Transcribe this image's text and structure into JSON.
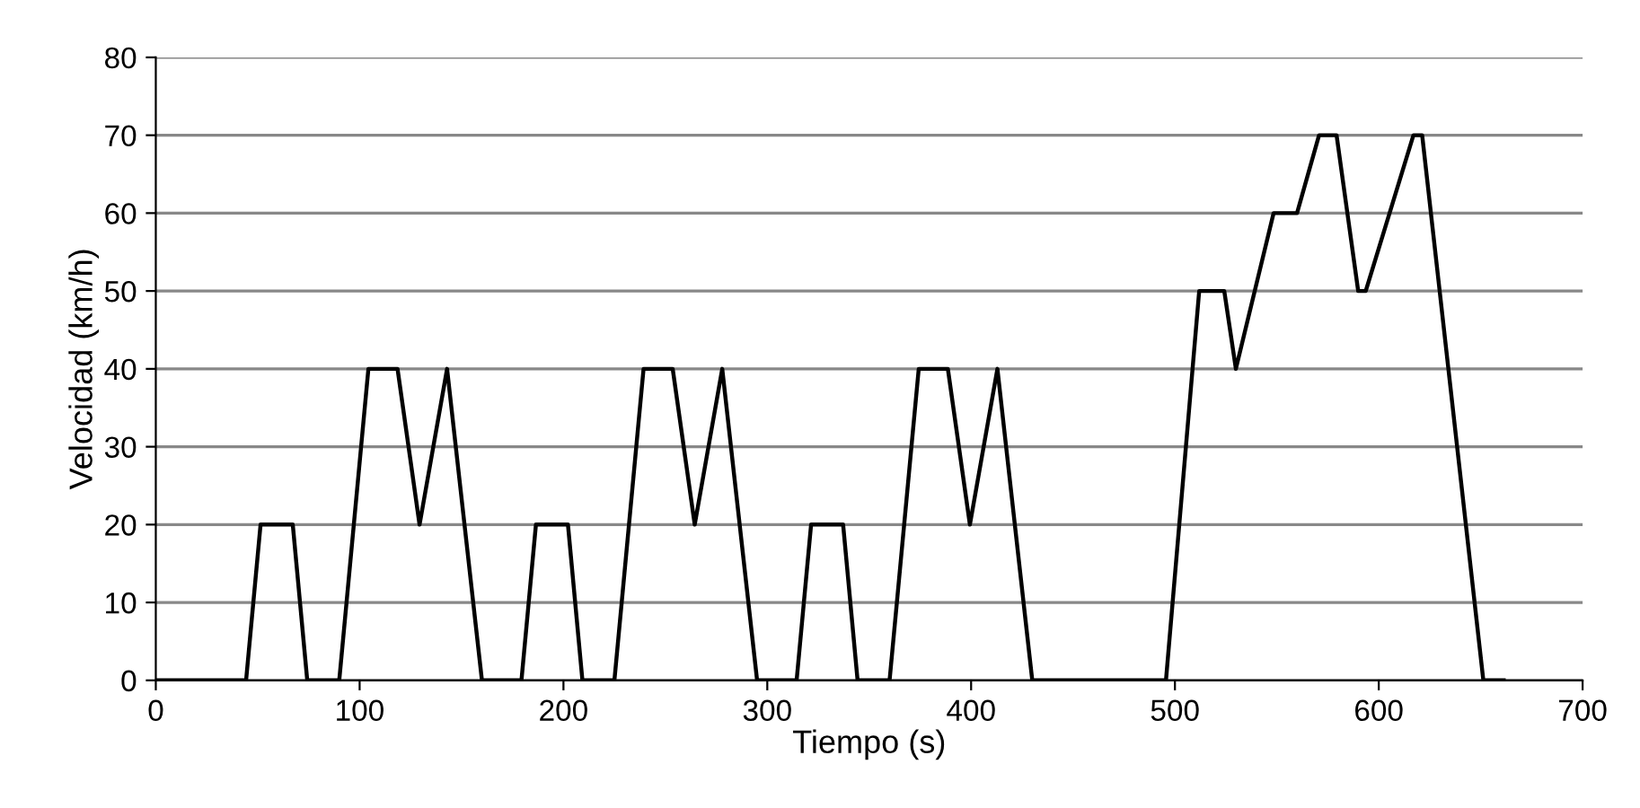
{
  "chart_data": {
    "type": "line",
    "xlabel": "Tiempo (s)",
    "ylabel": "Velocidad (km/h)",
    "series": [
      {
        "color": "#000000",
        "x": [
          0,
          44.3,
          51.4,
          67.2,
          74.3,
          90,
          104.3,
          118.6,
          129.4,
          142.9,
          160,
          179.4,
          186.5,
          202.2,
          209.3,
          225,
          239.3,
          253.6,
          264.4,
          277.9,
          295,
          314.4,
          321.5,
          337.2,
          344.3,
          360,
          374.3,
          388.6,
          399.4,
          412.9,
          430,
          495.6,
          511.9,
          524.2,
          529.9,
          548.4,
          559.9,
          570.7,
          579.3,
          589.9,
          593.6,
          617,
          621.3,
          651.3,
          661.3
        ],
        "values": [
          0,
          0,
          20,
          20,
          0,
          0,
          40,
          40,
          20,
          40,
          0,
          0,
          20,
          20,
          0,
          0,
          40,
          40,
          20,
          40,
          0,
          0,
          20,
          20,
          0,
          0,
          40,
          40,
          20,
          40,
          0,
          0,
          50,
          50,
          40,
          60,
          60,
          70,
          70,
          50,
          50,
          70,
          70,
          0,
          0
        ]
      }
    ],
    "xlim": [
      0,
      700
    ],
    "xticks": [
      0,
      100,
      200,
      300,
      400,
      500,
      600,
      700
    ],
    "ylim": [
      0,
      80
    ],
    "yticks": [
      0,
      10,
      20,
      30,
      40,
      50,
      60,
      70,
      80
    ],
    "grid": "y",
    "marker": "none",
    "line_style": "solid"
  }
}
